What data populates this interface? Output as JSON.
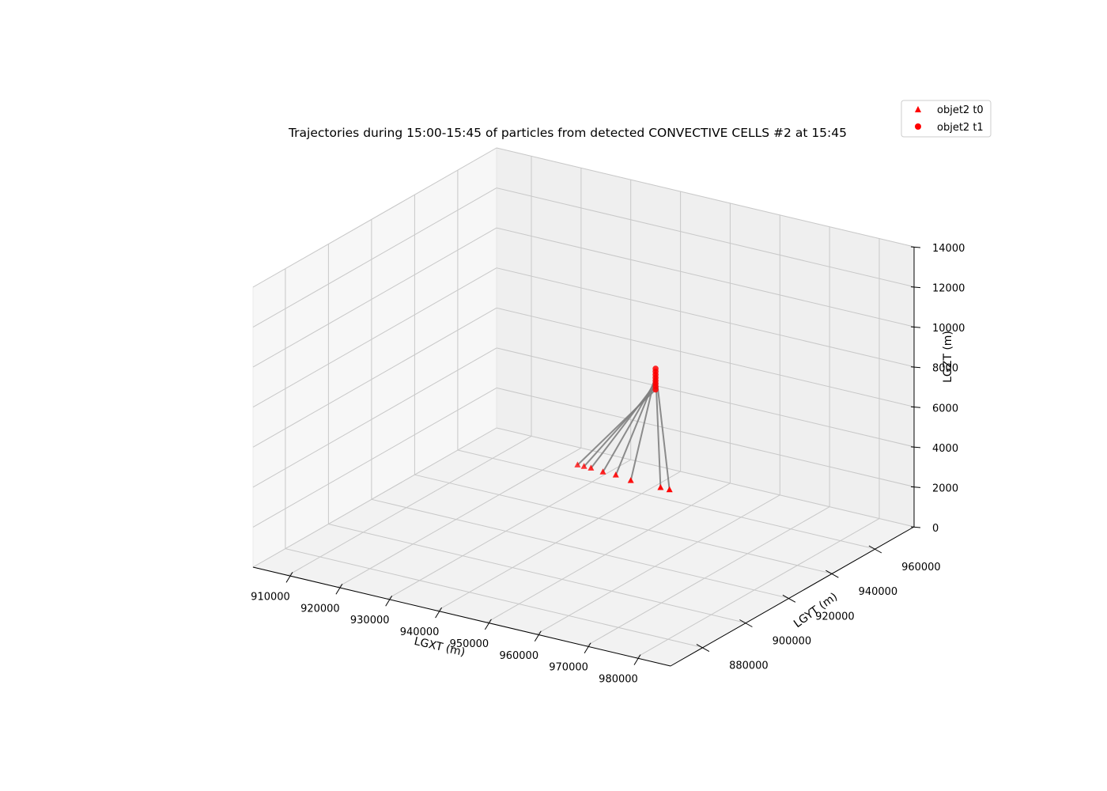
{
  "chart_data": {
    "type": "scatter3d",
    "title": "Trajectories during 15:00-15:45 of particles from detected CONVECTIVE CELLS #2 at 15:45",
    "xlabel": "LGXT (m)",
    "ylabel": "LGYT (m)",
    "zlabel": "LGZT (m)",
    "xlim": [
      903000,
      987000
    ],
    "ylim": [
      865000,
      978000
    ],
    "zlim": [
      0,
      14000
    ],
    "x_ticks": [
      910000,
      920000,
      930000,
      940000,
      950000,
      960000,
      970000,
      980000
    ],
    "y_ticks": [
      880000,
      900000,
      920000,
      940000,
      960000
    ],
    "z_ticks": [
      0,
      2000,
      4000,
      6000,
      8000,
      10000,
      12000,
      14000
    ],
    "x_tick_labels": [
      "910000",
      "920000",
      "930000",
      "940000",
      "950000",
      "960000",
      "970000",
      "980000"
    ],
    "y_tick_labels": [
      "880000",
      "900000",
      "920000",
      "940000",
      "960000"
    ],
    "z_tick_labels": [
      "0",
      "2000",
      "4000",
      "6000",
      "8000",
      "10000",
      "12000",
      "14000"
    ],
    "grid": true,
    "legend_position": "top-right",
    "series": [
      {
        "name": "objet2 t0",
        "marker": "triangle",
        "color": "#ff0000",
        "points": [
          {
            "x": 924500,
            "y": 966000,
            "z": 150
          },
          {
            "x": 925800,
            "y": 966000,
            "z": 150
          },
          {
            "x": 927200,
            "y": 966000,
            "z": 150
          },
          {
            "x": 929600,
            "y": 966000,
            "z": 100
          },
          {
            "x": 932200,
            "y": 966000,
            "z": 100
          },
          {
            "x": 935200,
            "y": 966000,
            "z": 0
          },
          {
            "x": 941200,
            "y": 966000,
            "z": 0
          },
          {
            "x": 943000,
            "y": 966000,
            "z": 0
          }
        ]
      },
      {
        "name": "objet2 t1",
        "marker": "circle",
        "color": "#ff0000",
        "points": [
          {
            "x": 935000,
            "y": 978000,
            "z": 3800
          },
          {
            "x": 935000,
            "y": 978000,
            "z": 3950
          },
          {
            "x": 935000,
            "y": 978000,
            "z": 4100
          },
          {
            "x": 935000,
            "y": 978000,
            "z": 4250
          },
          {
            "x": 935000,
            "y": 978000,
            "z": 4400
          },
          {
            "x": 935000,
            "y": 978000,
            "z": 4550
          },
          {
            "x": 935000,
            "y": 978000,
            "z": 4700
          },
          {
            "x": 935000,
            "y": 978000,
            "z": 4850
          }
        ]
      }
    ],
    "trajectory_color": "#808080"
  }
}
